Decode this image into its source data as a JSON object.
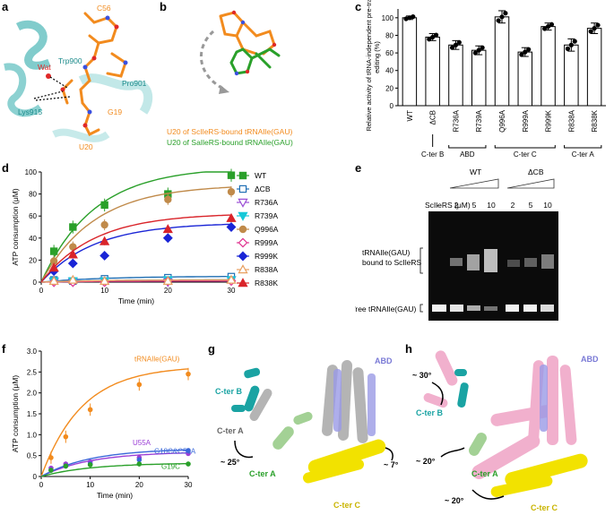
{
  "panels": {
    "a": {
      "label": "a",
      "annotations": [
        "C56",
        "Wat",
        "Trp900",
        "Pro901",
        "Lys915",
        "G19",
        "U20"
      ]
    },
    "b": {
      "label": "b",
      "caption_orange": "U20 of ScIleRS-bound tRNAIle(GAU)",
      "caption_green": "U20 of SaIleRS-bound tRNAIle(GAU)"
    },
    "c": {
      "label": "c"
    },
    "d": {
      "label": "d"
    },
    "e": {
      "label": "e"
    },
    "f": {
      "label": "f"
    },
    "g": {
      "label": "g",
      "annotations": [
        "C-ter B",
        "C-ter A",
        "~ 25°",
        "C-ter A",
        "ABD",
        "~ 7°",
        "C-ter C"
      ]
    },
    "h": {
      "label": "h",
      "annotations": [
        "~ 30°",
        "C-ter B",
        "ABD",
        "~ 20°",
        "C-ter A",
        "~ 20°",
        "C-ter C"
      ]
    }
  },
  "gel": {
    "header": "ScIleRS (μM)",
    "groups": [
      "WT",
      "ΔCB"
    ],
    "lanes": [
      "-",
      "2",
      "5",
      "10",
      "2",
      "5",
      "10"
    ],
    "band_upper": "tRNAIle(GAU)\nbound to ScIleRS",
    "band_lower": "free tRNAIle(GAU)"
  },
  "colors": {
    "orange": "#f28b1e",
    "green": "#2aa02a",
    "teal": "#1aa3a3",
    "yellow": "#f2e200",
    "pink": "#f0a8c8",
    "grey": "#9a9a9a",
    "lavender": "#9a9ae6",
    "lightgreen": "#9acd8a"
  },
  "chart_data": [
    {
      "id": "c",
      "type": "bar",
      "ylabel": "Relative activity of tRNA-independent pre-transfer editing (%)",
      "ylim": [
        0,
        100
      ],
      "yticks": [
        0,
        20,
        40,
        60,
        80,
        100
      ],
      "categories": [
        "WT",
        "ΔCB",
        "R736A",
        "R739A",
        "Q996A",
        "R999A",
        "R999K",
        "R838A",
        "R838K"
      ],
      "values": [
        100,
        78,
        69,
        63,
        101,
        61,
        90,
        69,
        88
      ],
      "errors": [
        2,
        4,
        5,
        5,
        7,
        5,
        4,
        7,
        6
      ],
      "groups": [
        {
          "name": "C-ter B",
          "from": 1,
          "to": 1
        },
        {
          "name": "ABD",
          "from": 2,
          "to": 3
        },
        {
          "name": "C-ter C",
          "from": 4,
          "to": 6
        },
        {
          "name": "C-ter A",
          "from": 7,
          "to": 8
        }
      ]
    },
    {
      "id": "d",
      "type": "line",
      "xlabel": "Time (min)",
      "ylabel": "ATP consumption (μM)",
      "xlim": [
        0,
        30
      ],
      "ylim": [
        0,
        100
      ],
      "xticks": [
        0,
        10,
        20,
        30
      ],
      "yticks": [
        0,
        20,
        40,
        60,
        80,
        100
      ],
      "x": [
        2,
        5,
        10,
        20,
        30
      ],
      "series": [
        {
          "name": "WT",
          "color": "#2aa02a",
          "marker": "square",
          "values": [
            28,
            50,
            70,
            80,
            97
          ]
        },
        {
          "name": "ΔCB",
          "color": "#1f6fb4",
          "marker": "square-open",
          "values": [
            2,
            1,
            3,
            4,
            5
          ]
        },
        {
          "name": "R736A",
          "color": "#9b4fd6",
          "marker": "tri-down-open",
          "values": [
            0,
            0,
            1,
            0,
            2
          ]
        },
        {
          "name": "R739A",
          "color": "#17c8d8",
          "marker": "tri-down",
          "values": [
            1,
            1,
            1,
            2,
            2
          ]
        },
        {
          "name": "Q996A",
          "color": "#c08a4a",
          "marker": "circle",
          "values": [
            19,
            32,
            52,
            75,
            82
          ]
        },
        {
          "name": "R999A",
          "color": "#e0338f",
          "marker": "diamond-open",
          "values": [
            0,
            0,
            0,
            1,
            1
          ]
        },
        {
          "name": "R999K",
          "color": "#1a25d6",
          "marker": "diamond",
          "values": [
            10,
            17,
            24,
            40,
            50
          ]
        },
        {
          "name": "R838A",
          "color": "#e8a060",
          "marker": "tri-open",
          "values": [
            1,
            2,
            1,
            1,
            2
          ]
        },
        {
          "name": "R838K",
          "color": "#d9242a",
          "marker": "tri",
          "values": [
            13,
            25,
            37,
            48,
            58
          ]
        }
      ]
    },
    {
      "id": "f",
      "type": "line",
      "xlabel": "Time (min)",
      "ylabel": "ATP consumption (μM)",
      "xlim": [
        0,
        30
      ],
      "ylim": [
        0,
        3
      ],
      "xticks": [
        0,
        10,
        20,
        30
      ],
      "yticks": [
        0,
        0.5,
        1.0,
        1.5,
        2.0,
        2.5,
        3.0
      ],
      "ytick_labels": [
        "0",
        "0.5",
        "1.0",
        "1.5",
        "2.0",
        "2.5",
        "3.0"
      ],
      "x": [
        2,
        5,
        10,
        20,
        30
      ],
      "series": [
        {
          "name": "tRNAIle(GAU)",
          "color": "#f28b1e",
          "values": [
            0.45,
            0.95,
            1.6,
            2.2,
            2.45
          ]
        },
        {
          "name": "U55A",
          "color": "#9b3fd6",
          "values": [
            0.2,
            0.3,
            0.35,
            0.45,
            0.55
          ]
        },
        {
          "name": "G18C&C56A",
          "color": "#3a68d9",
          "values": [
            0.15,
            0.25,
            0.3,
            0.4,
            0.62
          ]
        },
        {
          "name": "G19C",
          "color": "#2aa02a",
          "values": [
            0.15,
            0.25,
            0.28,
            0.3,
            0.3
          ]
        }
      ]
    }
  ]
}
